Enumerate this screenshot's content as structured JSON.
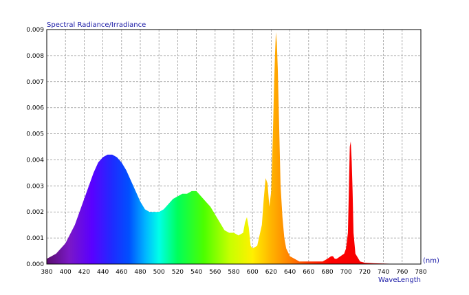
{
  "chart_data": {
    "type": "area",
    "title": "",
    "ylabel": "Spectral Radiance/Irradiance",
    "xlabel": "WaveLength",
    "x_unit": "(nm)",
    "xlim": [
      380,
      780
    ],
    "ylim": [
      0,
      0.009
    ],
    "x_ticks": [
      380,
      400,
      420,
      440,
      460,
      480,
      500,
      520,
      540,
      560,
      580,
      600,
      620,
      640,
      660,
      680,
      700,
      720,
      740,
      760,
      780
    ],
    "y_ticks": [
      0.0,
      0.001,
      0.002,
      0.003,
      0.004,
      0.005,
      0.006,
      0.007,
      0.008,
      0.009
    ],
    "y_tick_labels": [
      "0.000",
      "0.001",
      "0.002",
      "0.003",
      "0.004",
      "0.005",
      "0.006",
      "0.007",
      "0.008",
      "0.009"
    ],
    "grid": true,
    "fill": "visible-spectrum gradient (violet to red)",
    "series": [
      {
        "x": [
          380,
          390,
          400,
          410,
          420,
          430,
          435,
          440,
          445,
          450,
          455,
          460,
          465,
          470,
          475,
          480,
          485,
          490,
          495,
          500,
          505,
          510,
          515,
          520,
          525,
          530,
          535,
          540,
          545,
          550,
          555,
          560,
          565,
          570,
          575,
          580,
          585,
          590,
          592,
          594,
          596,
          598,
          600,
          605,
          610,
          612,
          614,
          616,
          618,
          620,
          621,
          622,
          623,
          624,
          625,
          626,
          627,
          628,
          629,
          630,
          632,
          634,
          636,
          640,
          645,
          650,
          660,
          670,
          675,
          680,
          684,
          686,
          688,
          690,
          694,
          698,
          700,
          702,
          703,
          704,
          705,
          706,
          707,
          708,
          710,
          715,
          720,
          730,
          740,
          750,
          760,
          770,
          780
        ],
        "values": [
          0.0002,
          0.0004,
          0.0008,
          0.0015,
          0.0025,
          0.0035,
          0.0039,
          0.0041,
          0.0042,
          0.0042,
          0.0041,
          0.0039,
          0.0036,
          0.0032,
          0.0028,
          0.0024,
          0.0021,
          0.002,
          0.002,
          0.002,
          0.0021,
          0.0023,
          0.0025,
          0.0026,
          0.0027,
          0.0027,
          0.0028,
          0.0028,
          0.0026,
          0.0024,
          0.0022,
          0.0019,
          0.0016,
          0.0013,
          0.0012,
          0.0012,
          0.0011,
          0.0012,
          0.0016,
          0.0018,
          0.0014,
          0.0007,
          0.0006,
          0.0007,
          0.0015,
          0.0025,
          0.0033,
          0.0031,
          0.0022,
          0.0028,
          0.004,
          0.0053,
          0.0068,
          0.008,
          0.0089,
          0.0085,
          0.0075,
          0.006,
          0.0045,
          0.003,
          0.0018,
          0.001,
          0.0006,
          0.0003,
          0.0002,
          0.0001,
          0.0001,
          0.0001,
          0.0001,
          0.0002,
          0.0003,
          0.0003,
          0.0002,
          0.0002,
          0.0003,
          0.0004,
          0.0006,
          0.0012,
          0.0028,
          0.0045,
          0.0047,
          0.004,
          0.0028,
          0.0012,
          0.0004,
          0.0001,
          5e-05,
          3e-05,
          2e-05,
          1e-05,
          1e-05,
          1e-05,
          0.0
        ]
      }
    ]
  }
}
